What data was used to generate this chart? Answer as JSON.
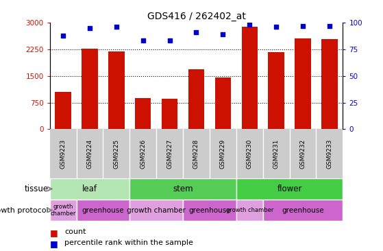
{
  "title": "GDS416 / 262402_at",
  "samples": [
    "GSM9223",
    "GSM9224",
    "GSM9225",
    "GSM9226",
    "GSM9227",
    "GSM9228",
    "GSM9229",
    "GSM9230",
    "GSM9231",
    "GSM9232",
    "GSM9233"
  ],
  "counts": [
    1050,
    2270,
    2190,
    870,
    860,
    1680,
    1450,
    2880,
    2170,
    2550,
    2530
  ],
  "percentiles": [
    88,
    95,
    96,
    83,
    83,
    91,
    89,
    98,
    96,
    97,
    97
  ],
  "ylim_left": [
    0,
    3000
  ],
  "ylim_right": [
    0,
    100
  ],
  "yticks_left": [
    0,
    750,
    1500,
    2250,
    3000
  ],
  "yticks_right": [
    0,
    25,
    50,
    75,
    100
  ],
  "bar_color": "#cc1100",
  "dot_color": "#0000cc",
  "tissue_groups": [
    {
      "label": "leaf",
      "start": 0,
      "end": 3,
      "color": "#b3e6b3"
    },
    {
      "label": "stem",
      "start": 3,
      "end": 7,
      "color": "#55cc55"
    },
    {
      "label": "flower",
      "start": 7,
      "end": 11,
      "color": "#44cc44"
    }
  ],
  "growth_groups": [
    {
      "label": "growth\nchamber",
      "start": 0,
      "end": 1,
      "color": "#e0a0e0",
      "small": true
    },
    {
      "label": "greenhouse",
      "start": 1,
      "end": 3,
      "color": "#cc66cc",
      "small": false
    },
    {
      "label": "growth chamber",
      "start": 3,
      "end": 5,
      "color": "#e0a0e0",
      "small": false
    },
    {
      "label": "greenhouse",
      "start": 5,
      "end": 7,
      "color": "#cc66cc",
      "small": false
    },
    {
      "label": "growth chamber",
      "start": 7,
      "end": 8,
      "color": "#e0a0e0",
      "small": true
    },
    {
      "label": "greenhouse",
      "start": 8,
      "end": 11,
      "color": "#cc66cc",
      "small": false
    }
  ],
  "tissue_label": "tissue",
  "growth_label": "growth protocol",
  "legend_count_label": "count",
  "legend_percentile_label": "percentile rank within the sample",
  "sample_bg": "#cccccc",
  "bg_color": "#ffffff"
}
